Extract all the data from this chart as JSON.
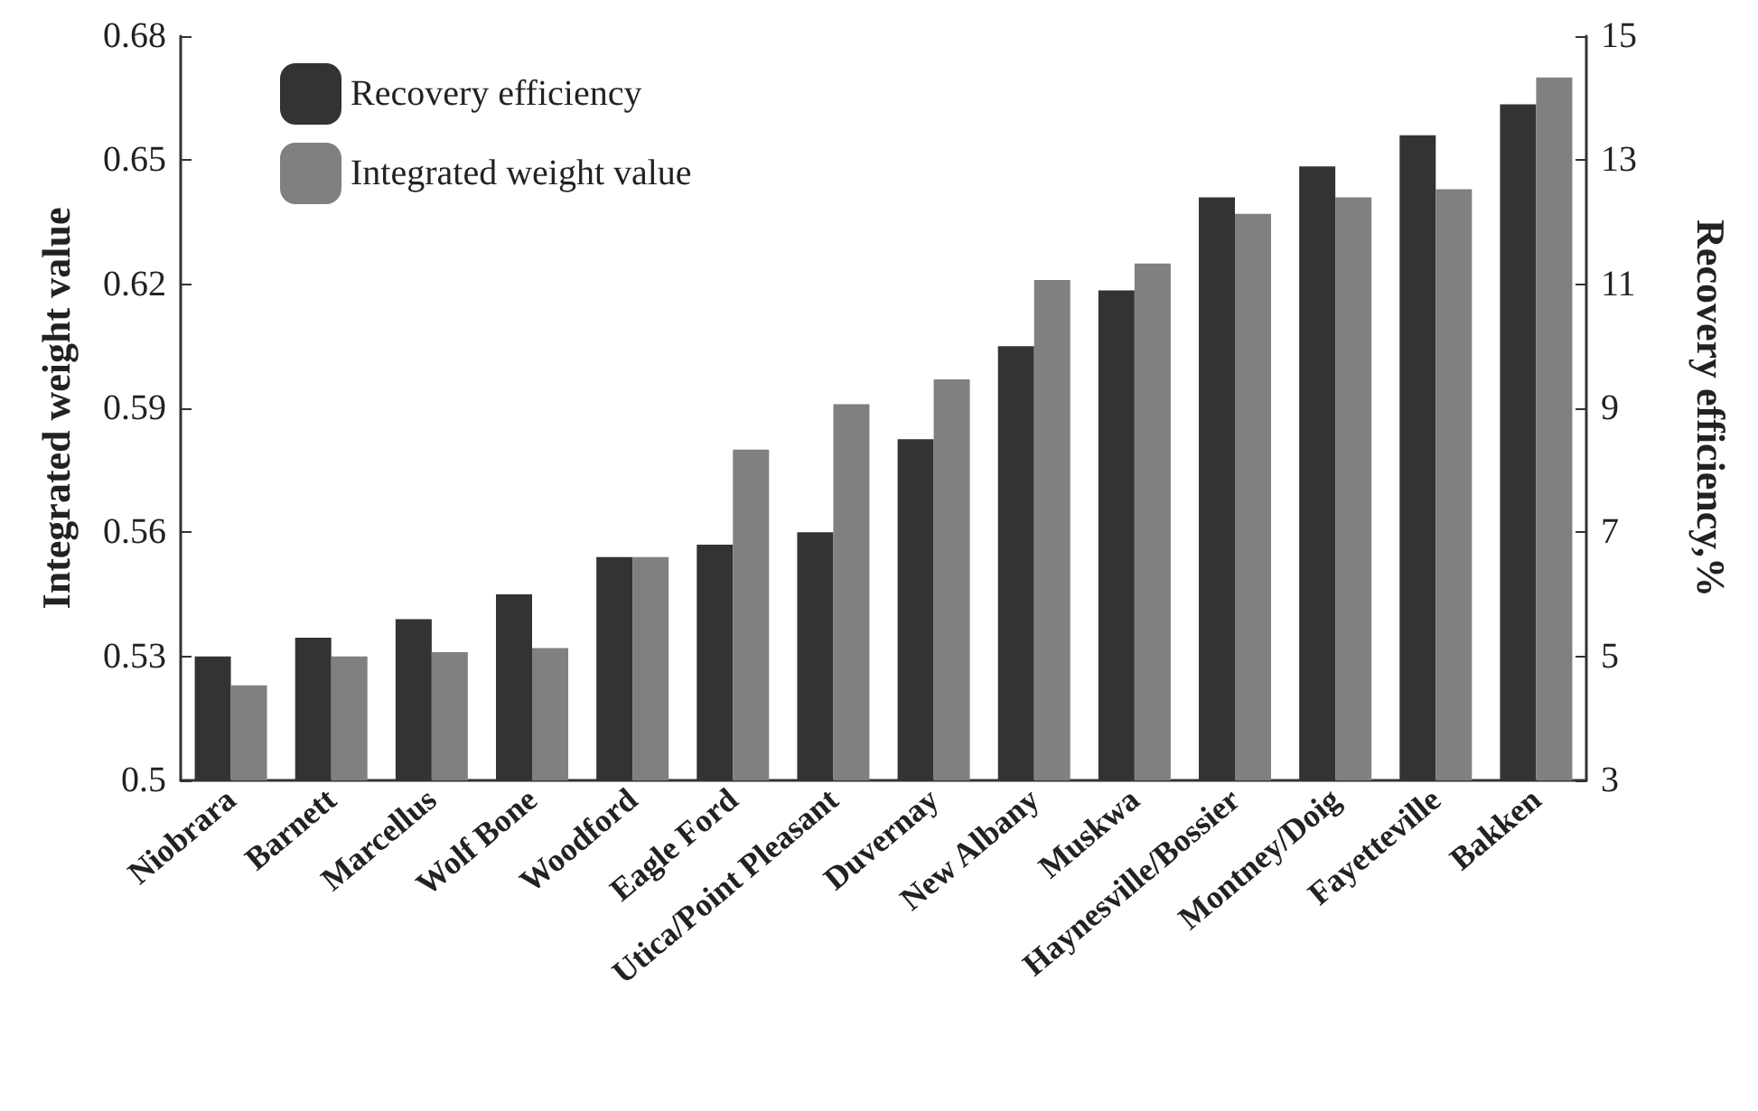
{
  "chart_data": {
    "type": "bar",
    "categories": [
      "Niobrara",
      "Barnett",
      "Marcellus",
      "Wolf Bone",
      "Woodford",
      "Eagle Ford",
      "Utica/Point Pleasant",
      "Duvernay",
      "New Albany",
      "Muskwa",
      "Haynesville/Bossier",
      "Montney/Doig",
      "Fayetteville",
      "Bakken"
    ],
    "series": [
      {
        "name": "Recovery efficiency",
        "color": "#333333",
        "axis": "y2",
        "values": [
          5.0,
          5.3,
          5.6,
          6.0,
          6.6,
          6.8,
          7.0,
          8.5,
          10.0,
          10.9,
          12.4,
          12.9,
          13.4,
          13.9
        ]
      },
      {
        "name": "Integrated weight value",
        "color": "#808080",
        "values": [
          0.523,
          0.53,
          0.531,
          0.532,
          0.554,
          0.58,
          0.591,
          0.597,
          0.621,
          0.625,
          0.637,
          0.641,
          0.643,
          0.67
        ]
      }
    ],
    "ylabel": "Integrated weight value",
    "y2label": "Recovery efficiency,%",
    "ylim": [
      0.5,
      0.68
    ],
    "yticks": [
      0.5,
      0.53,
      0.56,
      0.59,
      0.62,
      0.65,
      0.68
    ],
    "y2lim": [
      3,
      15
    ],
    "y2ticks": [
      3,
      5,
      7,
      9,
      11,
      13,
      15
    ],
    "legend": "top left",
    "grid": false
  }
}
